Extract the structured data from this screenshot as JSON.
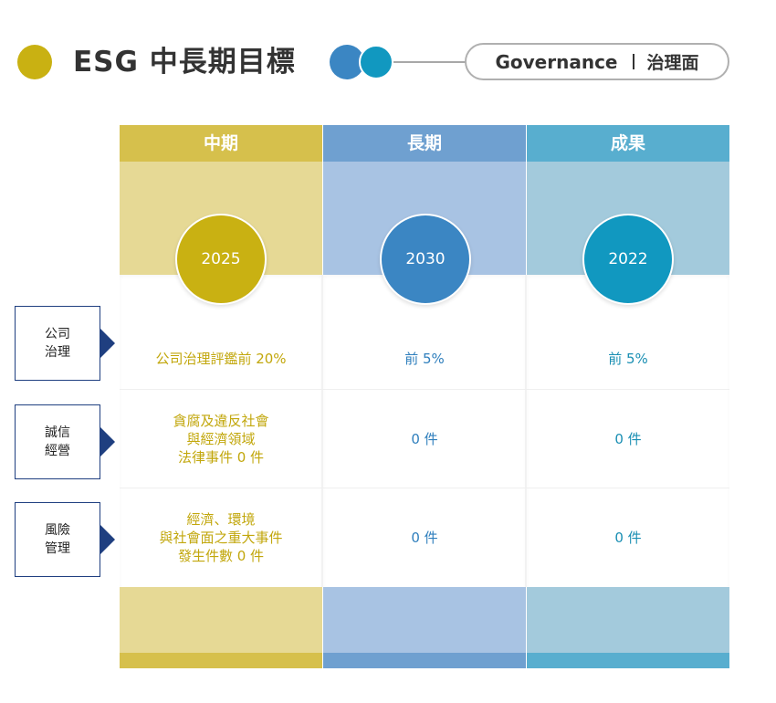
{
  "header": {
    "title": "ESG 中長期目標",
    "pill_en": "Governance",
    "pill_zh": "治理面"
  },
  "columns": [
    {
      "label": "中期",
      "year": "2025"
    },
    {
      "label": "長期",
      "year": "2030"
    },
    {
      "label": "成果",
      "year": "2022"
    }
  ],
  "rows": [
    {
      "label": "公司\n治理",
      "cells": [
        "公司治理評鑑前 20%",
        "前 5%",
        "前 5%"
      ]
    },
    {
      "label": "誠信\n經營",
      "cells": [
        "貪腐及違反社會\n與經濟領域\n法律事件 0 件",
        "0 件",
        "0 件"
      ]
    },
    {
      "label": "風險\n管理",
      "cells": [
        "經濟、環境\n與社會面之重大事件\n發生件數 0 件",
        "0 件",
        "0 件"
      ]
    }
  ],
  "colors": {
    "gold": "#c9b112",
    "blue": "#3b86c3",
    "teal": "#1198c0",
    "label_border": "#1f3f80"
  }
}
